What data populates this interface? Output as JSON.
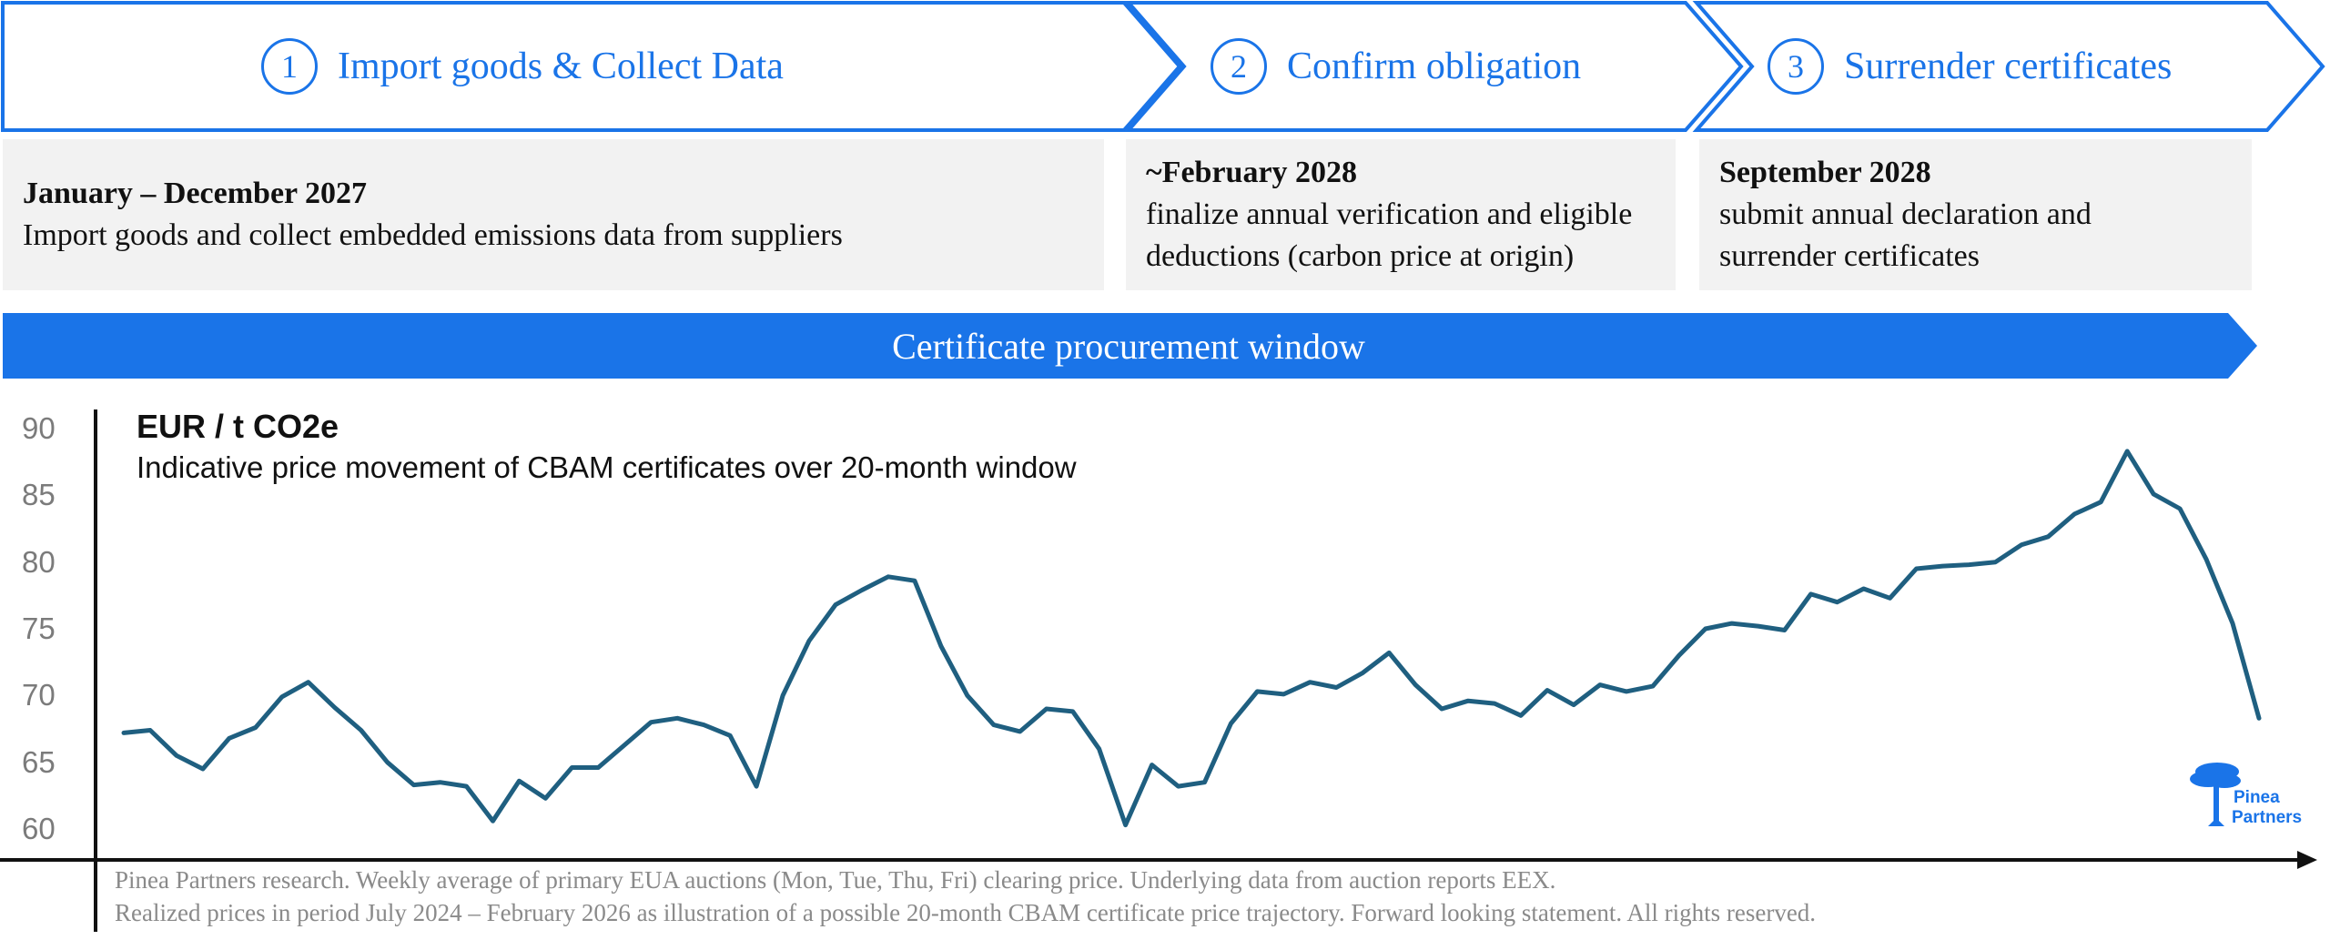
{
  "steps": [
    {
      "number": "1",
      "title": "Import goods & Collect Data"
    },
    {
      "number": "2",
      "title": "Confirm obligation"
    },
    {
      "number": "3",
      "title": "Surrender certificates"
    }
  ],
  "info": [
    {
      "date": "January – December 2027",
      "desc": [
        "Import goods and collect embedded emissions data from suppliers"
      ]
    },
    {
      "date": "~February 2028",
      "desc": [
        "finalize annual verification and eligible",
        "deductions (carbon price at origin)"
      ]
    },
    {
      "date": "September 2028",
      "desc": [
        "submit annual declaration and",
        "surrender certificates"
      ]
    }
  ],
  "banner": "Certificate procurement window",
  "colors": {
    "accent": "#1a74e8",
    "line": "#1f5f80",
    "panel": "#f2f2f2",
    "axis": "#111111"
  },
  "chart_data": {
    "type": "line",
    "title": "EUR / t CO2e",
    "subtitle": "Indicative price movement of CBAM certificates over 20-month window",
    "xlabel": "",
    "ylabel": "EUR / t CO2e",
    "ylim": [
      58,
      92
    ],
    "yticks": [
      60,
      65,
      70,
      75,
      80,
      85,
      90
    ],
    "grid": false,
    "series": [
      {
        "values": [
          67.2,
          67.4,
          65.5,
          64.5,
          66.8,
          67.6,
          69.9,
          71.0,
          69.1,
          67.4,
          65.0,
          63.3,
          63.5,
          63.2,
          60.6,
          63.6,
          62.3,
          64.6,
          64.6,
          66.3,
          68.0,
          68.3,
          67.8,
          67.0,
          63.2,
          70.0,
          74.1,
          76.8,
          77.9,
          78.9,
          78.6,
          73.7,
          70.0,
          67.8,
          67.3,
          69.0,
          68.8,
          66.0,
          60.3,
          64.8,
          63.2,
          63.5,
          67.9,
          70.3,
          70.1,
          71.0,
          70.6,
          71.7,
          73.2,
          70.8,
          69.0,
          69.6,
          69.4,
          68.5,
          70.4,
          69.3,
          70.8,
          70.3,
          70.7,
          73.0,
          75.0,
          75.4,
          75.2,
          74.9,
          77.6,
          77.0,
          78.0,
          77.3,
          79.5,
          79.7,
          79.8,
          80.0,
          81.3,
          81.9,
          83.6,
          84.5,
          88.3,
          85.1,
          84.0,
          80.2,
          75.4,
          68.3
        ]
      }
    ]
  },
  "footer": [
    "Pinea Partners research. Weekly average of primary EUA auctions (Mon, Tue, Thu, Fri) clearing price. Underlying data from auction reports EEX.",
    "Realized prices in period July 2024 – February 2026 as illustration of a possible 20-month CBAM certificate price trajectory. Forward looking statement. All rights reserved."
  ],
  "logo": {
    "line1": "Pinea",
    "line2": "Partners",
    "icon": "pine-tree-icon"
  }
}
